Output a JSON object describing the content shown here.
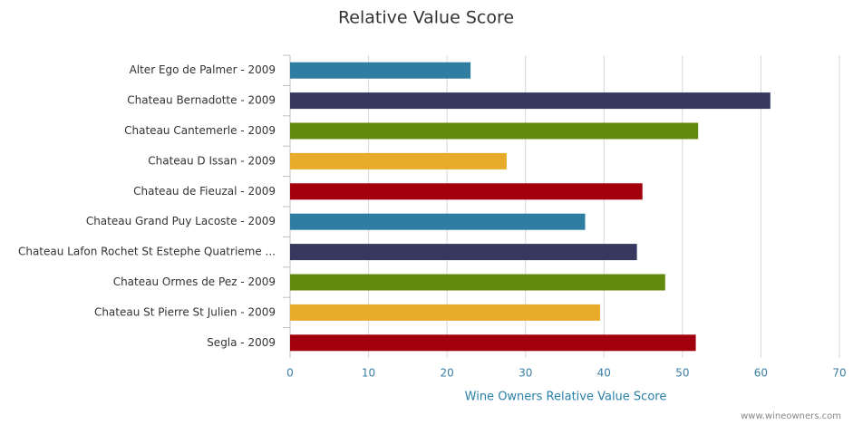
{
  "chart_data": {
    "type": "bar",
    "orientation": "horizontal",
    "title": "Relative Value Score",
    "categories": [
      "Alter Ego de Palmer - 2009",
      "Chateau Bernadotte - 2009",
      "Chateau Cantemerle - 2009",
      "Chateau D Issan - 2009",
      "Chateau de Fieuzal - 2009",
      "Chateau Grand Puy Lacoste - 2009",
      "Chateau Lafon Rochet St Estephe Quatrieme ...",
      "Chateau Ormes de Pez - 2009",
      "Chateau St Pierre St Julien - 2009",
      "Segla - 2009"
    ],
    "values": [
      23,
      61.2,
      52,
      27.6,
      44.9,
      37.6,
      44.2,
      47.8,
      39.5,
      51.7
    ],
    "colors": [
      "#2f7ea1",
      "#36385f",
      "#618a0d",
      "#e9ac2a",
      "#a3000e",
      "#2f7ea1",
      "#36385f",
      "#618a0d",
      "#e9ac2a",
      "#a3000e"
    ],
    "x_label": "Wine Owners Relative Value Score",
    "xlim": [
      0,
      70
    ],
    "xticks": [
      0,
      10,
      20,
      30,
      40,
      50,
      60,
      70
    ],
    "grid": true,
    "credit": "www.wineowners.com"
  }
}
